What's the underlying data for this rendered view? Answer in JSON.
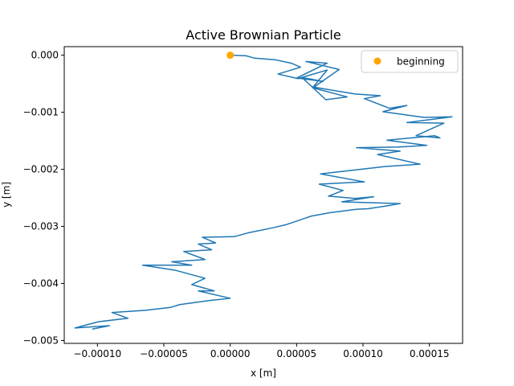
{
  "chart_data": {
    "type": "line",
    "title": "Active Brownian Particle",
    "xlabel": "x [m]",
    "ylabel": "y [m]",
    "xlim": [
      -0.000125,
      0.000175
    ],
    "ylim": [
      -0.00505,
      0.00015
    ],
    "xticks": [
      -0.0001,
      -5e-05,
      0.0,
      5e-05,
      0.0001,
      0.00015
    ],
    "xtick_labels": [
      "−0.00010",
      "−0.00005",
      "0.00000",
      "0.00005",
      "0.00010",
      "0.00015"
    ],
    "yticks": [
      0.0,
      -0.001,
      -0.002,
      -0.003,
      -0.004,
      -0.005
    ],
    "ytick_labels": [
      "0.000",
      "−0.001",
      "−0.002",
      "−0.003",
      "−0.004",
      "−0.005"
    ],
    "grid": false,
    "legend": {
      "placement": "upper-right",
      "entries": [
        {
          "label": "beginning",
          "marker": "circle",
          "color": "#ffa500"
        }
      ]
    },
    "series": [
      {
        "color": "#1f77b4",
        "x": [
          0.0,
          1.2e-05,
          1.8e-05,
          3.4e-05,
          4.6e-05,
          5.3e-05,
          3.6e-05,
          5.1e-05,
          7.3e-05,
          6.2e-05,
          8.8e-05,
          7.2e-05,
          5.4e-05,
          7e-05,
          5e-05,
          7.3e-05,
          5.7e-05,
          8.2e-05,
          6.3e-05,
          9.4e-05,
          0.000113,
          0.000101,
          0.00012,
          0.000133,
          0.000115,
          0.000146,
          0.000167,
          0.000133,
          0.000161,
          0.00014,
          0.000158,
          0.000154,
          0.000118,
          0.000148,
          0.000126,
          9.5e-05,
          0.000128,
          0.000111,
          0.000143,
          0.000117,
          6.8e-05,
          0.000101,
          6.7e-05,
          8.5e-05,
          7.4e-05,
          9.4e-05,
          0.000108,
          8.4e-05,
          0.000128,
          0.000118,
          0.000104,
          9.5e-05,
          7.5e-05,
          6.1e-05,
          4.2e-05,
          3.3e-05,
          1.4e-05,
          3e-06,
          -2.1e-05,
          -1.1e-05,
          -2.4e-05,
          -1.4e-05,
          -3.5e-05,
          -1.9e-05,
          -4.4e-05,
          -2.9e-05,
          -6.6e-05,
          -4.1e-05,
          -1.9e-05,
          -2.9e-05,
          -1.2e-05,
          -2.4e-05,
          0.0,
          -1.6e-05,
          -3.8e-05,
          -4.5e-05,
          -6.4e-05,
          -8.9e-05,
          -7.7e-05,
          -9.9e-05,
          -0.000117,
          -9.1e-05,
          -0.000104
        ],
        "y": [
          0.0,
          -1e-05,
          -5e-05,
          -8e-05,
          -0.00014,
          -0.00021,
          -0.00033,
          -0.00041,
          -0.00026,
          -0.00057,
          -0.00073,
          -0.00078,
          -0.00039,
          -0.00046,
          -0.0004,
          -0.00014,
          -0.00011,
          -0.00025,
          -0.00056,
          -0.00068,
          -0.00071,
          -0.00076,
          -0.00093,
          -0.00088,
          -0.00099,
          -0.00109,
          -0.00108,
          -0.00118,
          -0.00119,
          -0.00141,
          -0.00145,
          -0.00141,
          -0.00149,
          -0.00158,
          -0.00161,
          -0.00162,
          -0.00168,
          -0.00174,
          -0.00191,
          -0.00195,
          -0.00208,
          -0.00222,
          -0.00226,
          -0.00237,
          -0.00247,
          -0.00251,
          -0.00248,
          -0.00257,
          -0.0026,
          -0.00264,
          -0.00269,
          -0.0027,
          -0.00276,
          -0.00282,
          -0.00297,
          -0.00302,
          -0.00311,
          -0.00318,
          -0.00319,
          -0.00329,
          -0.00331,
          -0.00341,
          -0.00344,
          -0.00358,
          -0.00362,
          -0.00368,
          -0.00368,
          -0.00377,
          -0.00391,
          -0.00402,
          -0.00413,
          -0.00413,
          -0.00426,
          -0.0043,
          -0.00437,
          -0.00442,
          -0.00447,
          -0.00451,
          -0.00461,
          -0.00467,
          -0.00478,
          -0.00474,
          -0.0048
        ]
      }
    ],
    "start_point": {
      "label": "beginning",
      "x": 0.0,
      "y": 0.0,
      "color": "#ffa500"
    }
  }
}
